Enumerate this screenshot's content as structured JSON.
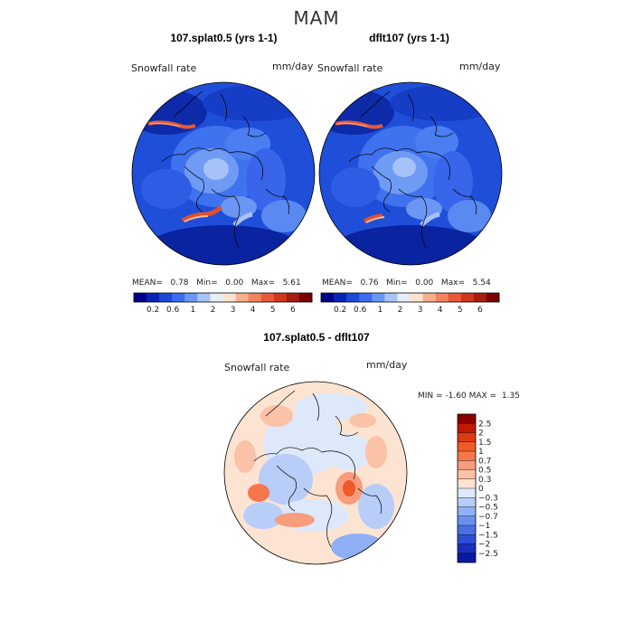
{
  "suptitle": "MAM",
  "panel1": {
    "title": "107.splat0.5 (yrs 1-1)",
    "field_label": "Snowfall rate",
    "units": "mm/day",
    "stats": {
      "mean_label": "MEAN=",
      "mean": "0.78",
      "min_label": "Min=",
      "min": "0.00",
      "max_label": "Max=",
      "max": "5.61"
    }
  },
  "panel2": {
    "title": "dflt107 (yrs 1-1)",
    "field_label": "Snowfall rate",
    "units": "mm/day",
    "stats": {
      "mean_label": "MEAN=",
      "mean": "0.76",
      "min_label": "Min=",
      "min": "0.00",
      "max_label": "Max=",
      "max": "5.54"
    }
  },
  "panel3": {
    "title": "107.splat0.5 - dflt107",
    "field_label": "Snowfall rate",
    "units": "mm/day",
    "minmax": {
      "min_label": "MIN =",
      "min": "-1.60",
      "max_label": "MAX =",
      "max": "1.35"
    }
  },
  "chart_data": [
    {
      "type": "heatmap",
      "projection": "north-polar-stereographic",
      "title": "107.splat0.5 (yrs 1-1)",
      "variable": "Snowfall rate",
      "units": "mm/day",
      "mean": 0.78,
      "min": 0.0,
      "max": 5.61,
      "colorbar": {
        "orientation": "horizontal",
        "tick_labels": [
          "0.2",
          "0.6",
          "1",
          "2",
          "3",
          "4",
          "5",
          "6"
        ],
        "colors": [
          "#00008b",
          "#0a25b5",
          "#1f48d8",
          "#3b6cf0",
          "#6a96f5",
          "#a8c4f8",
          "#e6eefa",
          "#fde3cf",
          "#f8b08f",
          "#f2845f",
          "#e95a3b",
          "#d1361f",
          "#a81c10",
          "#7a0000"
        ]
      }
    },
    {
      "type": "heatmap",
      "projection": "north-polar-stereographic",
      "title": "dflt107 (yrs 1-1)",
      "variable": "Snowfall rate",
      "units": "mm/day",
      "mean": 0.76,
      "min": 0.0,
      "max": 5.54,
      "colorbar": {
        "orientation": "horizontal",
        "tick_labels": [
          "0.2",
          "0.6",
          "1",
          "2",
          "3",
          "4",
          "5",
          "6"
        ],
        "colors": [
          "#00008b",
          "#0a25b5",
          "#1f48d8",
          "#3b6cf0",
          "#6a96f5",
          "#a8c4f8",
          "#e6eefa",
          "#fde3cf",
          "#f8b08f",
          "#f2845f",
          "#e95a3b",
          "#d1361f",
          "#a81c10",
          "#7a0000"
        ]
      }
    },
    {
      "type": "heatmap",
      "projection": "north-polar-stereographic",
      "title": "107.splat0.5 - dflt107",
      "variable": "Snowfall rate",
      "units": "mm/day",
      "min": -1.6,
      "max": 1.35,
      "colorbar": {
        "orientation": "vertical",
        "tick_labels": [
          "2.5",
          "2",
          "1.5",
          "1",
          "0.7",
          "0.5",
          "0.3",
          "0",
          "−0.3",
          "−0.5",
          "−0.7",
          "−1",
          "−1.5",
          "−2",
          "−2.5"
        ],
        "colors": [
          "#8b0000",
          "#c01a05",
          "#dd3b12",
          "#f05a28",
          "#f5774b",
          "#f79c7c",
          "#fbc2a7",
          "#fde4d2",
          "#dde8fa",
          "#b8cdf8",
          "#8fb0f4",
          "#6a90ee",
          "#4a6fe3",
          "#2d4ed3",
          "#1a2fbf",
          "#0a1aa0"
        ]
      }
    }
  ]
}
